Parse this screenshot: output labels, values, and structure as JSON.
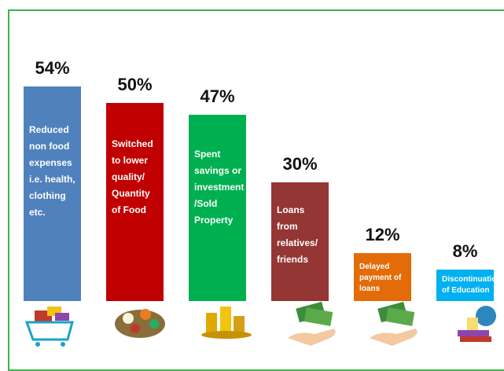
{
  "chart_data": {
    "type": "bar",
    "categories": [
      "Reduced non food expenses i.e. health, clothing etc.",
      "Switched to lower quality/ Quantity of Food",
      "Spent savings or investment /Sold Property",
      "Loans from relatives/ friends",
      "Delayed payment of loans",
      "Discontinuation of Education"
    ],
    "values": [
      54,
      50,
      47,
      30,
      12,
      8
    ],
    "value_labels": [
      "54%",
      "50%",
      "47%",
      "30%",
      "12%",
      "8%"
    ],
    "colors": [
      "#4f81bd",
      "#c00000",
      "#00b050",
      "#943634",
      "#e36c09",
      "#00b0f0"
    ]
  }
}
